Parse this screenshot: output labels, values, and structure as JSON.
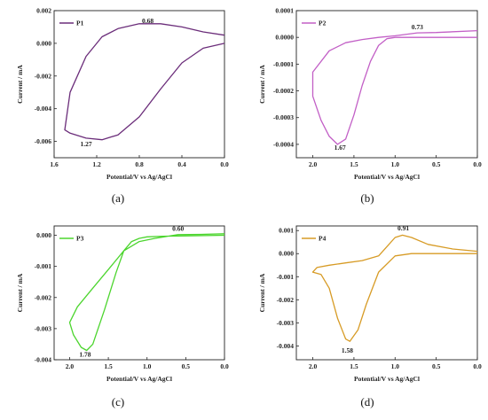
{
  "chart_data": [
    {
      "type": "line",
      "panel_label": "(a)",
      "color": "#6b2d7a",
      "xlabel": "Potential/V vs Ag/AgCl",
      "ylabel": "Current / mA",
      "xlim": [
        1.6,
        0.0
      ],
      "ylim": [
        -0.007,
        0.002
      ],
      "xticks": [
        1.6,
        1.2,
        0.8,
        0.4,
        0.0
      ],
      "xtick_labels": [
        "1.6",
        "1.2",
        "0.8",
        "0.4",
        "0.0"
      ],
      "yticks": [
        -0.006,
        -0.004,
        -0.002,
        0.0,
        0.002
      ],
      "ytick_labels": [
        "-0.006",
        "-0.004",
        "-0.002",
        "0.000",
        "0.002"
      ],
      "legend": "P1",
      "legend_position": "top-left",
      "annotations": [
        {
          "text": "0.68",
          "x": 0.72,
          "y": 0.00125
        },
        {
          "text": "1.27",
          "x": 1.3,
          "y": -0.0063
        }
      ],
      "series": [
        {
          "x": [
            0.0,
            0.2,
            0.4,
            0.6,
            0.8,
            1.0,
            1.15,
            1.3,
            1.45,
            1.5,
            1.45,
            1.3,
            1.15,
            1.0,
            0.8,
            0.6,
            0.4,
            0.2,
            0.0
          ],
          "y": [
            0.0005,
            0.0007,
            0.001,
            0.0012,
            0.0012,
            0.0009,
            0.0004,
            -0.0008,
            -0.003,
            -0.0053,
            -0.0055,
            -0.0058,
            -0.0059,
            -0.0056,
            -0.0045,
            -0.0028,
            -0.0012,
            -0.0003,
            0.0
          ]
        }
      ]
    },
    {
      "type": "line",
      "panel_label": "(b)",
      "color": "#c25fc6",
      "xlabel": "Potential/V vs Ag/AgCl",
      "ylabel": "Current / mA",
      "xlim": [
        2.2,
        0.0
      ],
      "ylim": [
        -0.00045,
        0.0001
      ],
      "xticks": [
        2.0,
        1.5,
        1.0,
        0.5,
        0.0
      ],
      "xtick_labels": [
        "2.0",
        "1.5",
        "1.0",
        "0.5",
        "0.0"
      ],
      "yticks": [
        -0.0004,
        -0.0003,
        -0.0002,
        -0.0001,
        0.0,
        0.0001
      ],
      "ytick_labels": [
        "-0.0004",
        "-0.0003",
        "-0.0002",
        "-0.0001",
        "0.0000",
        "0.0001"
      ],
      "legend": "P2",
      "legend_position": "top-left",
      "annotations": [
        {
          "text": "0.73",
          "x": 0.73,
          "y": 3e-05
        },
        {
          "text": "1.67",
          "x": 1.67,
          "y": -0.00042
        }
      ],
      "series": [
        {
          "x": [
            0.0,
            0.5,
            0.73,
            1.0,
            1.2,
            1.4,
            1.6,
            1.8,
            2.0,
            2.0,
            1.9,
            1.8,
            1.7,
            1.6,
            1.5,
            1.4,
            1.3,
            1.2,
            1.1,
            1.0,
            0.8,
            0.5,
            0.0
          ],
          "y": [
            2.5e-05,
            1.8e-05,
            1.7e-05,
            6e-06,
            0.0,
            -8e-06,
            -2e-05,
            -5e-05,
            -0.00013,
            -0.00022,
            -0.00031,
            -0.00037,
            -0.0004,
            -0.00038,
            -0.00029,
            -0.00018,
            -9e-05,
            -3e-05,
            -5e-06,
            0.0,
            0.0,
            0.0,
            0.0
          ]
        }
      ]
    },
    {
      "type": "line",
      "panel_label": "(c)",
      "color": "#4cd52e",
      "xlabel": "Potential/V vs Ag/AgCl",
      "ylabel": "Current / mA",
      "xlim": [
        2.2,
        0.0
      ],
      "ylim": [
        -0.004,
        0.0003
      ],
      "xticks": [
        2.0,
        1.5,
        1.0,
        0.5,
        0.0
      ],
      "xtick_labels": [
        "2.0",
        "1.5",
        "1.0",
        "0.5",
        "0.0"
      ],
      "yticks": [
        -0.004,
        -0.003,
        -0.002,
        -0.001,
        0.0
      ],
      "ytick_labels": [
        "-0.004",
        "-0.003",
        "-0.002",
        "-0.001",
        "0.000"
      ],
      "legend": "P3",
      "legend_position": "top-left",
      "annotations": [
        {
          "text": "0.60",
          "x": 0.6,
          "y": 0.00015
        },
        {
          "text": "1.78",
          "x": 1.8,
          "y": -0.0039
        }
      ],
      "series": [
        {
          "x": [
            0.0,
            0.3,
            0.6,
            0.9,
            1.1,
            1.3,
            1.5,
            1.7,
            1.9,
            2.0,
            1.95,
            1.85,
            1.78,
            1.7,
            1.55,
            1.4,
            1.3,
            1.2,
            1.1,
            1.0,
            0.8,
            0.5,
            0.0
          ],
          "y": [
            5e-05,
            3e-05,
            2e-05,
            -0.0001,
            -0.0002,
            -0.0005,
            -0.0011,
            -0.0017,
            -0.0023,
            -0.0028,
            -0.0032,
            -0.0036,
            -0.0037,
            -0.0035,
            -0.0024,
            -0.0012,
            -0.0005,
            -0.0002,
            -0.0001,
            -5e-05,
            -3e-05,
            -2e-05,
            0.0
          ]
        }
      ]
    },
    {
      "type": "line",
      "panel_label": "(d)",
      "color": "#d79b25",
      "xlabel": "Potential/V vs Ag/AgCl",
      "ylabel": "Current / mA",
      "xlim": [
        2.2,
        0.0
      ],
      "ylim": [
        -0.0046,
        0.0012
      ],
      "xticks": [
        2.0,
        1.5,
        1.0,
        0.5,
        0.0
      ],
      "xtick_labels": [
        "2.0",
        "1.5",
        "1.0",
        "0.5",
        "0.0"
      ],
      "yticks": [
        -0.004,
        -0.003,
        -0.002,
        -0.001,
        0.0,
        0.001
      ],
      "ytick_labels": [
        "-0.004",
        "-0.003",
        "-0.002",
        "-0.001",
        "0.000",
        "0.001"
      ],
      "legend": "P4",
      "legend_position": "top-left",
      "annotations": [
        {
          "text": "0.91",
          "x": 0.9,
          "y": 0.001
        },
        {
          "text": "1.58",
          "x": 1.58,
          "y": -0.0043
        }
      ],
      "series": [
        {
          "x": [
            0.0,
            0.3,
            0.6,
            0.8,
            0.91,
            1.0,
            1.1,
            1.2,
            1.4,
            1.6,
            1.8,
            1.95,
            2.0,
            1.9,
            1.8,
            1.7,
            1.6,
            1.55,
            1.45,
            1.35,
            1.2,
            1.0,
            0.8,
            0.5,
            0.0
          ],
          "y": [
            0.0001,
            0.0002,
            0.0004,
            0.0007,
            0.0008,
            0.0007,
            0.0003,
            -0.0001,
            -0.0003,
            -0.0004,
            -0.0005,
            -0.0006,
            -0.0008,
            -0.0009,
            -0.0015,
            -0.0028,
            -0.0037,
            -0.0038,
            -0.0033,
            -0.0022,
            -0.0008,
            -0.0001,
            0.0,
            0.0,
            0.0
          ]
        }
      ]
    }
  ]
}
